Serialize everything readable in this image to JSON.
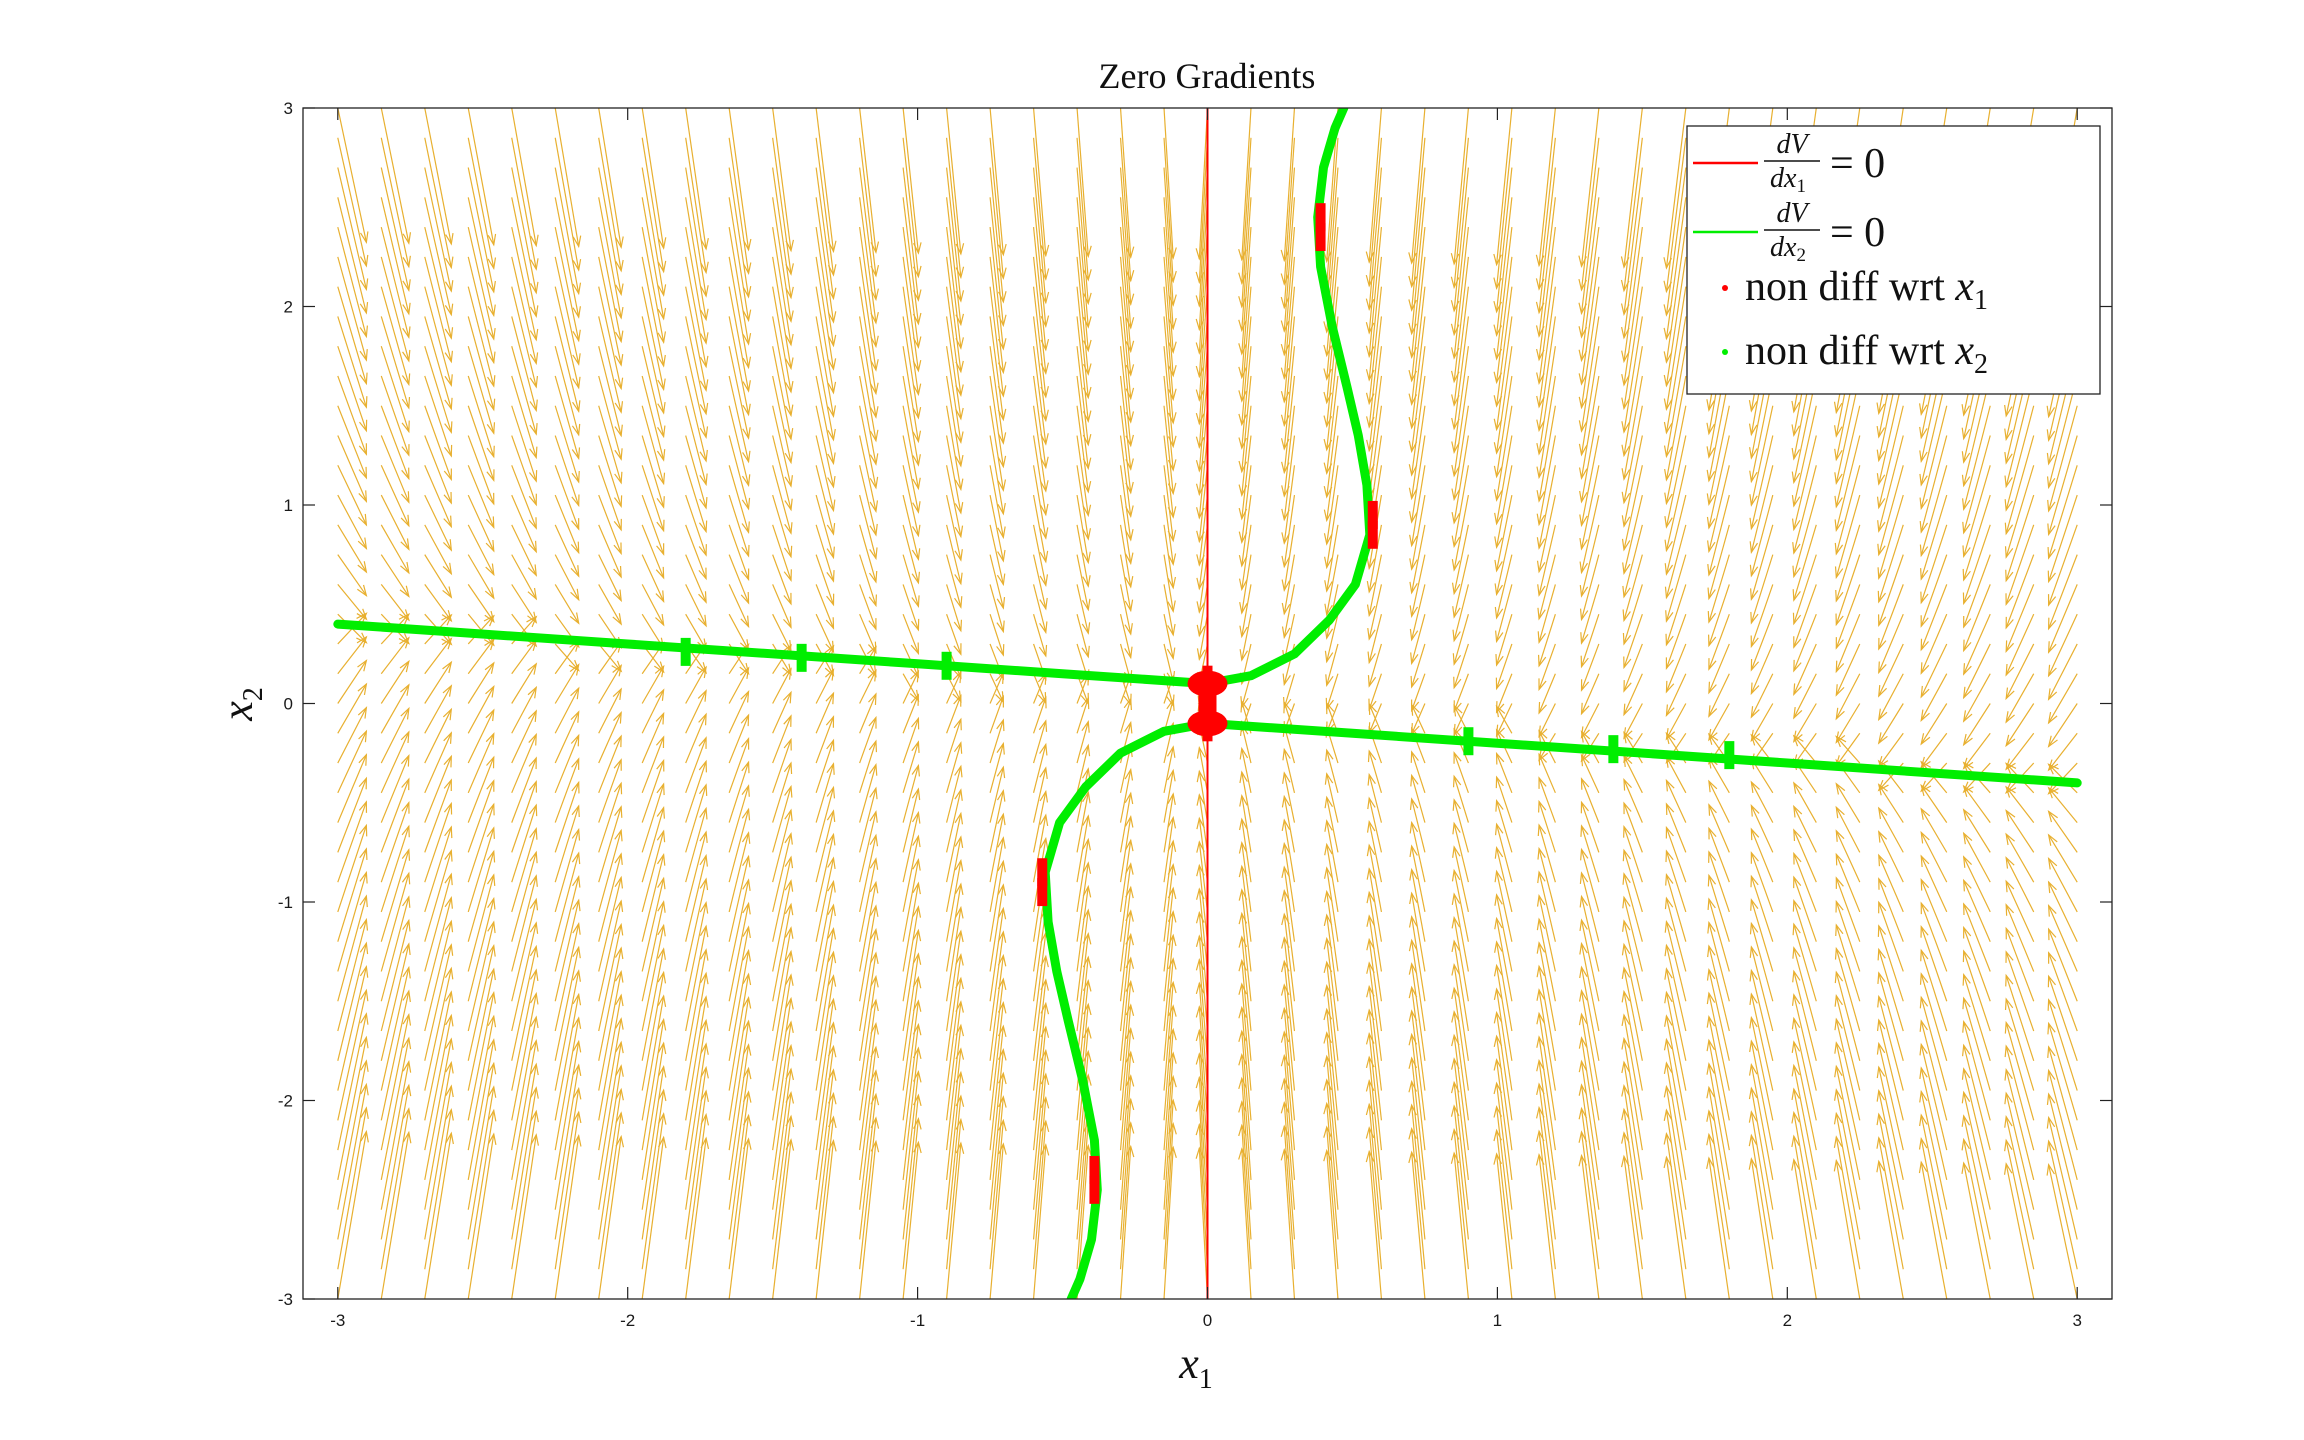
{
  "chart_data": {
    "type": "vector-field-contour",
    "title": "Zero Gradients",
    "xlabel": "x",
    "xlabel_sub": "1",
    "ylabel": "x",
    "ylabel_sub": "2",
    "xlim": [
      -3.12,
      3.12
    ],
    "ylim": [
      -3,
      3
    ],
    "xticks": [
      -3,
      -2,
      -1,
      0,
      1,
      2,
      3
    ],
    "xtick_labels": [
      "-3",
      "-2",
      "-1",
      "0",
      "1",
      "2",
      "3"
    ],
    "yticks": [
      -3,
      -2,
      -1,
      0,
      1,
      2,
      3
    ],
    "ytick_labels": [
      "-3",
      "-2",
      "-1",
      "0",
      "1",
      "2",
      "3"
    ],
    "grid": false,
    "legend_position": "top-right",
    "colors": {
      "red": "#ff0000",
      "green": "#00ee00",
      "quiver": "#e8b030",
      "axes": "#222222"
    },
    "quiver": {
      "x_range": [
        -3,
        3
      ],
      "y_range": [
        -3,
        3
      ],
      "step": 0.15,
      "field": "approximate direction: downward for x2 above the green boundary curve, upward below it"
    },
    "series": [
      {
        "name": "dV/dx1 = 0",
        "color": "#ff0000",
        "kind": "line",
        "points": [
          [
            0,
            -3
          ],
          [
            0,
            3
          ]
        ]
      },
      {
        "name": "dV/dx2 = 0",
        "color": "#00ee00",
        "kind": "curves",
        "curves": [
          [
            [
              -3,
              0.4
            ],
            [
              -2,
              0.3
            ],
            [
              -1,
              0.2
            ],
            [
              -0.5,
              0.15
            ],
            [
              0,
              0.1
            ]
          ],
          [
            [
              0,
              -0.1
            ],
            [
              0.5,
              -0.15
            ],
            [
              1,
              -0.2
            ],
            [
              2,
              -0.3
            ],
            [
              3,
              -0.4
            ]
          ],
          [
            [
              0,
              0.1
            ],
            [
              0.15,
              0.14
            ],
            [
              0.3,
              0.25
            ],
            [
              0.42,
              0.42
            ],
            [
              0.51,
              0.6
            ],
            [
              0.56,
              0.85
            ],
            [
              0.55,
              1.1
            ],
            [
              0.52,
              1.35
            ],
            [
              0.48,
              1.6
            ],
            [
              0.43,
              1.9
            ],
            [
              0.39,
              2.2
            ],
            [
              0.38,
              2.45
            ],
            [
              0.4,
              2.7
            ],
            [
              0.44,
              2.9
            ],
            [
              0.47,
              3.0
            ]
          ],
          [
            [
              0,
              -0.1
            ],
            [
              -0.15,
              -0.14
            ],
            [
              -0.3,
              -0.25
            ],
            [
              -0.42,
              -0.42
            ],
            [
              -0.51,
              -0.6
            ],
            [
              -0.56,
              -0.85
            ],
            [
              -0.55,
              -1.1
            ],
            [
              -0.52,
              -1.35
            ],
            [
              -0.48,
              -1.6
            ],
            [
              -0.43,
              -1.9
            ],
            [
              -0.39,
              -2.2
            ],
            [
              -0.38,
              -2.45
            ],
            [
              -0.4,
              -2.7
            ],
            [
              -0.44,
              -2.9
            ],
            [
              -0.47,
              -3.0
            ]
          ]
        ]
      },
      {
        "name": "non diff wrt x1",
        "color": "#ff0000",
        "kind": "points",
        "points": [
          [
            0.39,
            2.35
          ],
          [
            0.39,
            2.45
          ],
          [
            0.57,
            0.85
          ],
          [
            0.57,
            0.95
          ],
          [
            -0.57,
            -0.85
          ],
          [
            -0.57,
            -0.95
          ],
          [
            -0.39,
            -2.35
          ],
          [
            -0.39,
            -2.45
          ],
          [
            0,
            0.12
          ],
          [
            0,
            0.05
          ],
          [
            0,
            -0.05
          ],
          [
            0,
            -0.12
          ]
        ]
      },
      {
        "name": "non diff wrt x2",
        "color": "#00ee00",
        "kind": "points",
        "points": [
          [
            -1.8,
            0.26
          ],
          [
            -1.4,
            0.23
          ],
          [
            -0.9,
            0.19
          ],
          [
            0.9,
            -0.19
          ],
          [
            1.4,
            -0.23
          ],
          [
            1.8,
            -0.26
          ]
        ]
      }
    ],
    "legend": [
      {
        "label_parts": [
          "dV",
          "dx",
          "1",
          "= 0"
        ],
        "color": "#ff0000",
        "kind": "line"
      },
      {
        "label_parts": [
          "dV",
          "dx",
          "2",
          "= 0"
        ],
        "color": "#00ee00",
        "kind": "line"
      },
      {
        "text": "non diff wrt",
        "var": "x",
        "sub": "1",
        "color": "#ff0000",
        "kind": "point"
      },
      {
        "text": "non diff wrt",
        "var": "x",
        "sub": "2",
        "color": "#00ee00",
        "kind": "point"
      }
    ]
  }
}
